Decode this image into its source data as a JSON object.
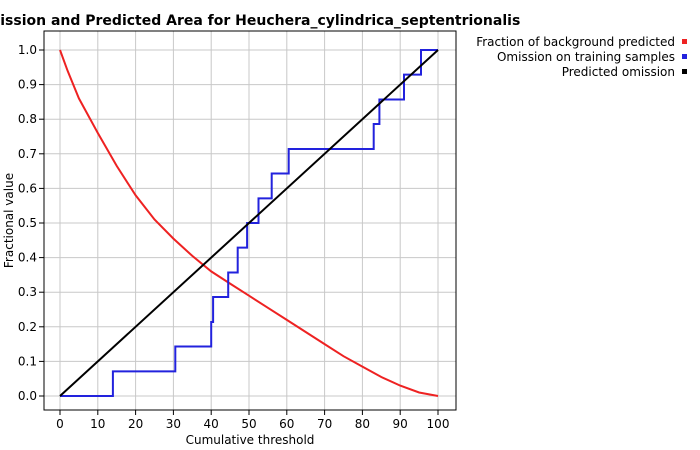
{
  "chart_data": {
    "type": "line",
    "title": "Omission and Predicted Area for Heuchera_cylindrica_septentrionalis",
    "xlabel": "Cumulative threshold",
    "ylabel": "Fractional value",
    "xlim": [
      0,
      100
    ],
    "ylim": [
      0,
      1
    ],
    "xticks": [
      0,
      10,
      20,
      30,
      40,
      50,
      60,
      70,
      80,
      90,
      100
    ],
    "yticks": [
      0.0,
      0.1,
      0.2,
      0.3,
      0.4,
      0.5,
      0.6,
      0.7,
      0.8,
      0.9,
      1.0
    ],
    "xtick_labels": [
      "0",
      "10",
      "20",
      "30",
      "40",
      "50",
      "60",
      "70",
      "80",
      "90",
      "100"
    ],
    "ytick_labels": [
      "0.0",
      "0.1",
      "0.2",
      "0.3",
      "0.4",
      "0.5",
      "0.6",
      "0.7",
      "0.8",
      "0.9",
      "1.0"
    ],
    "grid": true,
    "legend_position": "top-right",
    "series": [
      {
        "name": "Fraction of background predicted",
        "color": "#ee2222",
        "style": "line",
        "x": [
          0,
          2,
          5,
          10,
          15,
          20,
          25,
          30,
          35,
          40,
          45,
          50,
          55,
          60,
          65,
          70,
          75,
          80,
          85,
          90,
          95,
          100
        ],
        "y": [
          1.0,
          0.94,
          0.86,
          0.76,
          0.665,
          0.58,
          0.51,
          0.455,
          0.405,
          0.36,
          0.325,
          0.29,
          0.255,
          0.22,
          0.185,
          0.15,
          0.115,
          0.085,
          0.055,
          0.03,
          0.01,
          0.0
        ]
      },
      {
        "name": "Omission on training samples",
        "color": "#2222dd",
        "style": "step",
        "x": [
          0,
          14,
          14,
          30.5,
          30.5,
          40,
          40,
          40.5,
          40.5,
          44.5,
          44.5,
          47,
          47,
          49.5,
          49.5,
          52.5,
          52.5,
          56,
          56,
          60.5,
          60.5,
          83,
          83,
          84.5,
          84.5,
          91,
          91,
          95.5,
          95.5,
          100
        ],
        "y": [
          0,
          0,
          0.071,
          0.071,
          0.143,
          0.143,
          0.214,
          0.214,
          0.286,
          0.286,
          0.357,
          0.357,
          0.429,
          0.429,
          0.5,
          0.5,
          0.571,
          0.571,
          0.643,
          0.643,
          0.714,
          0.714,
          0.786,
          0.786,
          0.857,
          0.857,
          0.929,
          0.929,
          1.0,
          1.0
        ]
      },
      {
        "name": "Predicted omission",
        "color": "#000000",
        "style": "line",
        "x": [
          0,
          100
        ],
        "y": [
          0,
          1
        ]
      }
    ]
  }
}
